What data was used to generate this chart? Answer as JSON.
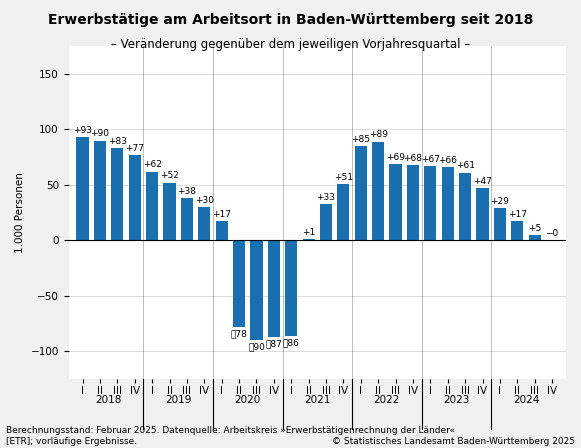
{
  "title": "Erwerbstätige am Arbeitsort in Baden-Württemberg seit 2018",
  "subtitle": "– Veränderung gegenüber dem jeweiligen Vorjahresquartal –",
  "ylabel": "1.000 Personen",
  "values": [
    93,
    90,
    83,
    77,
    62,
    52,
    38,
    30,
    17,
    -78,
    -90,
    -87,
    -86,
    1,
    33,
    51,
    85,
    89,
    69,
    68,
    67,
    66,
    61,
    47,
    29,
    17,
    5,
    0
  ],
  "labels": [
    "+93",
    "+90",
    "+83",
    "+77",
    "+62",
    "+52",
    "+38",
    "+30",
    "+17",
    "⁲78",
    "⁲90",
    "⁲87",
    "⁲86",
    "+1",
    "+33",
    "+51",
    "+85",
    "+89",
    "+69",
    "+68",
    "+67",
    "+66",
    "+61",
    "+47",
    "+29",
    "+17",
    "+5",
    "−0"
  ],
  "bar_color": "#1a6faf",
  "background_color": "#f0f0f0",
  "plot_bg_color": "#ffffff",
  "ylim": [
    -125,
    175
  ],
  "yticks": [
    -100,
    -50,
    0,
    50,
    100,
    150
  ],
  "years": [
    "2018",
    "2019",
    "2020",
    "2021",
    "2022",
    "2023",
    "2024"
  ],
  "quarters_per_year": [
    4,
    4,
    4,
    4,
    4,
    4,
    4
  ],
  "quarter_labels": [
    "I",
    "II",
    "III",
    "IV"
  ],
  "footnote1": "Berechnungsstand: Februar 2025. Datenquelle: Arbeitskreis »Erwerbstätigenrechnung der Länder«",
  "footnote2": "[ETR]; vorläufige Ergebnisse.",
  "copyright": "© Statistisches Landesamt Baden-Württemberg 2025",
  "title_fontsize": 10,
  "subtitle_fontsize": 8.5,
  "label_fontsize": 6.5,
  "tick_fontsize": 7.5,
  "footnote_fontsize": 6.5
}
